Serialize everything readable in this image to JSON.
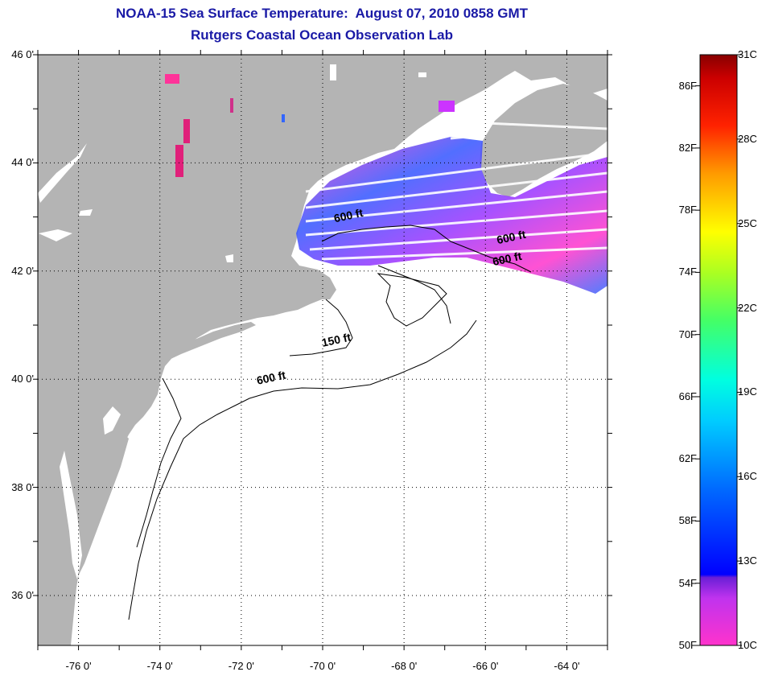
{
  "title": {
    "line1": "NOAA-15 Sea Surface Temperature:  August 07, 2010 0858 GMT",
    "line2": "Rutgers Coastal Ocean Observation Lab"
  },
  "map": {
    "lat_ticks": [
      {
        "value": 46,
        "label": "46 0'"
      },
      {
        "value": 44,
        "label": "44 0'"
      },
      {
        "value": 42,
        "label": "42 0'"
      },
      {
        "value": 40,
        "label": "40 0'"
      },
      {
        "value": 38,
        "label": "38 0'"
      },
      {
        "value": 36,
        "label": "36 0'"
      }
    ],
    "lon_ticks": [
      {
        "value": -76,
        "label": "-76 0'"
      },
      {
        "value": -74,
        "label": "-74 0'"
      },
      {
        "value": -72,
        "label": "-72 0'"
      },
      {
        "value": -70,
        "label": "-70 0'"
      },
      {
        "value": -68,
        "label": "-68 0'"
      },
      {
        "value": -66,
        "label": "-66 0'"
      },
      {
        "value": -64,
        "label": "-64 0'"
      }
    ],
    "extent": {
      "lon_min": -77,
      "lon_max": -63,
      "lat_min": 35,
      "lat_max": 46
    },
    "isobath_labels": [
      {
        "text": "600 ft",
        "lon": -69.7,
        "lat": 42.9
      },
      {
        "text": "600 ft",
        "lon": -65.7,
        "lat": 42.5
      },
      {
        "text": "600 ft",
        "lon": -65.8,
        "lat": 42.1
      },
      {
        "text": "150 ft",
        "lon": -70.0,
        "lat": 40.6
      },
      {
        "text": "600 ft",
        "lon": -71.6,
        "lat": 39.9
      }
    ],
    "colors": {
      "land": "#b4b4b4",
      "ocean": "#ffffff",
      "grid": "#000000"
    }
  },
  "colorbar": {
    "fahrenheit_labels": [
      "86F",
      "82F",
      "78F",
      "74F",
      "70F",
      "66F",
      "62F",
      "58F",
      "54F",
      "50F"
    ],
    "celsius_labels": [
      "31C",
      "28C",
      "25C",
      "22C",
      "19C",
      "16C",
      "13C",
      "10C"
    ],
    "range_f": [
      50,
      88
    ],
    "range_c": [
      10,
      31
    ]
  }
}
